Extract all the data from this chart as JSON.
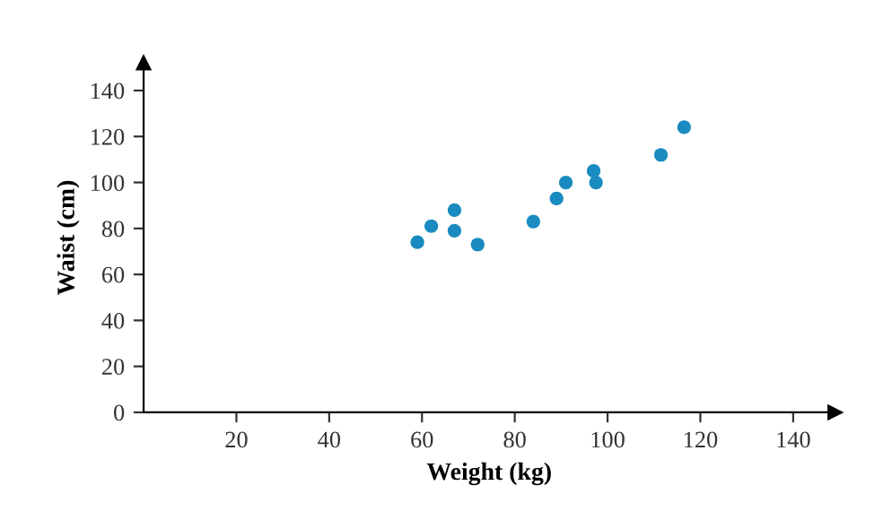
{
  "chart_data": {
    "type": "scatter",
    "xlabel": "Weight (kg)",
    "ylabel": "Waist (cm)",
    "x": [
      59,
      62,
      67,
      67,
      72,
      84,
      89,
      91,
      97,
      97.5,
      111.5,
      116.5
    ],
    "series": [
      {
        "color": "#1a8bc0",
        "values": [
          74,
          81,
          88,
          79,
          73,
          83,
          93,
          100,
          105,
          100,
          112,
          124
        ]
      }
    ],
    "xlim": [
      0,
      149
    ],
    "ylim": [
      0,
      152
    ],
    "xticks": [
      20,
      40,
      60,
      80,
      100,
      120,
      140
    ],
    "yticks": [
      0,
      20,
      40,
      60,
      80,
      100,
      120,
      140
    ],
    "grid": false,
    "marker": "circle"
  }
}
